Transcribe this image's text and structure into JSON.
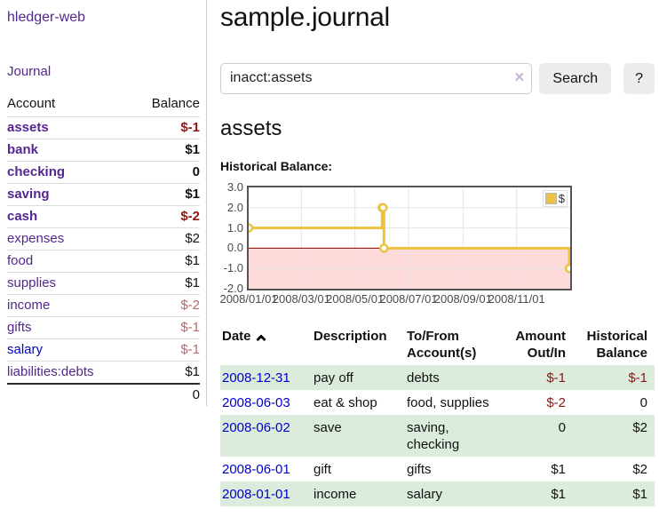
{
  "colors": {
    "purple": "#54278e",
    "blue": "#0000cc",
    "neg_dark": "#96150f",
    "neg_soft": "#b56a6a",
    "neg_table": "#8f1414",
    "row_green": "#dcecdc",
    "gold": "#edc240",
    "zero_red": "#8b0000",
    "neg_region": "#fcdada",
    "grid": "#e4e4e4",
    "plot_border": "#545454",
    "btn_bg": "#ececec"
  },
  "app": {
    "brand": "hledger-web"
  },
  "nav": {
    "journal": "Journal"
  },
  "sidebar": {
    "header": {
      "account": "Account",
      "balance": "Balance"
    },
    "accounts": [
      {
        "name": "assets",
        "balance": "$-1"
      },
      {
        "name": "bank",
        "balance": "$1"
      },
      {
        "name": "checking",
        "balance": "0"
      },
      {
        "name": "saving",
        "balance": "$1"
      },
      {
        "name": "cash",
        "balance": "$-2"
      },
      {
        "name": "expenses",
        "balance": "$2"
      },
      {
        "name": "food",
        "balance": "$1"
      },
      {
        "name": "supplies",
        "balance": "$1"
      },
      {
        "name": "income",
        "balance": "$-2"
      },
      {
        "name": "gifts",
        "balance": "$-1"
      },
      {
        "name": "salary",
        "balance": "$-1"
      },
      {
        "name": "liabilities:debts",
        "balance": "$1"
      }
    ],
    "total": "0"
  },
  "header": {
    "title": "sample.journal"
  },
  "search": {
    "value": "inacct:assets",
    "clear_icon": "×",
    "button": "Search",
    "help_button": "?"
  },
  "report": {
    "heading": "assets",
    "chart_label": "Historical Balance:"
  },
  "chart_data": {
    "type": "line",
    "style": "step",
    "title": "Historical Balance",
    "legend_position": "top-right",
    "grid": true,
    "ylim": [
      -2,
      3
    ],
    "xrange": [
      "2008-01-01",
      "2009-01-01"
    ],
    "yticks": [
      {
        "label": "3.0",
        "value": 3
      },
      {
        "label": "2.0",
        "value": 2
      },
      {
        "label": "1.0",
        "value": 1
      },
      {
        "label": "0.0",
        "value": 0
      },
      {
        "label": "-1.0",
        "value": -1
      },
      {
        "label": "-2.0",
        "value": -2
      }
    ],
    "xticks": [
      {
        "label": "2008/01/01",
        "date": "2008-01-01"
      },
      {
        "label": "2008/03/01",
        "date": "2008-03-01"
      },
      {
        "label": "2008/05/01",
        "date": "2008-05-01"
      },
      {
        "label": "2008/07/01",
        "date": "2008-07-01"
      },
      {
        "label": "2008/09/01",
        "date": "2008-09-01"
      },
      {
        "label": "2008/11/01",
        "date": "2008-11-01"
      }
    ],
    "series": [
      {
        "name": "$",
        "points": [
          [
            "2008-01-01",
            1
          ],
          [
            "2008-06-01",
            2
          ],
          [
            "2008-06-02",
            2
          ],
          [
            "2008-06-03",
            0
          ],
          [
            "2008-12-31",
            -1
          ]
        ]
      }
    ],
    "negative_region_below": 0
  },
  "register": {
    "headers": {
      "date": "Date",
      "description": "Description",
      "accounts": "To/From Account(s)",
      "amount": "Amount Out/In",
      "balance": "Historical Balance"
    },
    "rows": [
      {
        "date": "2008-12-31",
        "description": "pay off",
        "accounts": "debts",
        "amount": "$-1",
        "balance": "$-1"
      },
      {
        "date": "2008-06-03",
        "description": "eat & shop",
        "accounts": "food, supplies",
        "amount": "$-2",
        "balance": "0"
      },
      {
        "date": "2008-06-02",
        "description": "save",
        "accounts": "saving, checking",
        "amount": "0",
        "balance": "$2"
      },
      {
        "date": "2008-06-01",
        "description": "gift",
        "accounts": "gifts",
        "amount": "$1",
        "balance": "$2"
      },
      {
        "date": "2008-01-01",
        "description": "income",
        "accounts": "salary",
        "amount": "$1",
        "balance": "$1"
      }
    ]
  }
}
